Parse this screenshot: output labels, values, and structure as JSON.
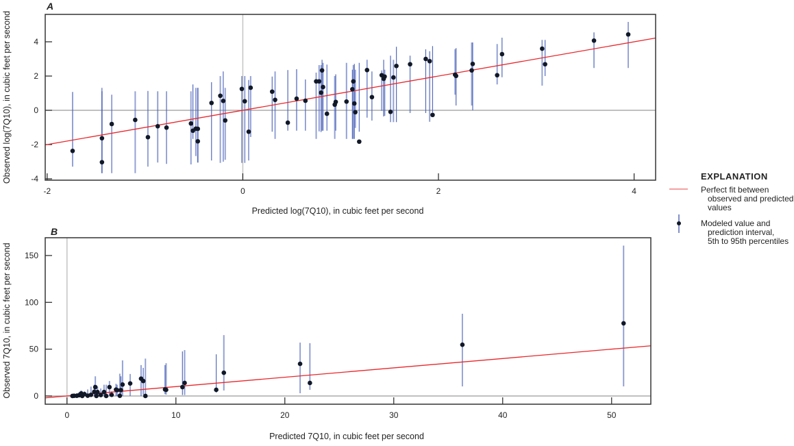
{
  "colors": {
    "fit_line": "#e8262a",
    "interval": "#4a62b8",
    "point": "#111827",
    "reference": "#9a9a9a",
    "frame": "#333333"
  },
  "legend": {
    "title": "EXPLANATION",
    "fit_line": [
      "Perfect fit between",
      "observed and predicted",
      "values"
    ],
    "points": [
      "Modeled value and",
      "prediction interval,",
      "5th to 95th percentiles"
    ]
  },
  "chart_data": [
    {
      "panel": "A",
      "type": "scatter",
      "xlabel": "Predicted log(7Q10), in cubic feet per second",
      "ylabel": "Observed log(7Q10), in cubic feet per second",
      "xlim": [
        -2.02,
        4.22
      ],
      "ylim": [
        -4.08,
        5.6
      ],
      "xticks": [
        -2,
        0,
        2,
        4
      ],
      "yticks": [
        -4,
        -2,
        0,
        2,
        4
      ],
      "grid": false,
      "reference_lines": {
        "x": 0,
        "y": 0
      },
      "fit_line": "y = x",
      "point_fields": [
        "predicted",
        "observed",
        "p5",
        "p95"
      ],
      "points": [
        [
          -1.74,
          -2.37,
          -3.29,
          1.07
        ],
        [
          -1.44,
          -1.63,
          -3.67,
          1.31
        ],
        [
          -1.44,
          -3.03,
          -3.67,
          1.11
        ],
        [
          -1.34,
          -0.8,
          -3.67,
          0.91
        ],
        [
          -1.1,
          -0.56,
          -3.67,
          1.11
        ],
        [
          -0.97,
          -1.57,
          -3.29,
          1.13
        ],
        [
          -0.87,
          -0.93,
          -3.05,
          1.11
        ],
        [
          -0.78,
          -1.01,
          -3.13,
          1.11
        ],
        [
          -0.53,
          -0.77,
          -3.16,
          1.11
        ],
        [
          -0.51,
          -1.19,
          -1.67,
          1.51
        ],
        [
          -0.48,
          -1.07,
          -2.67,
          1.31
        ],
        [
          -0.46,
          -1.08,
          -3.05,
          1.31
        ],
        [
          -0.46,
          -1.81,
          -3.05,
          1.31
        ],
        [
          -0.32,
          0.43,
          -2.93,
          1.64
        ],
        [
          -0.23,
          0.85,
          -3.07,
          2.0
        ],
        [
          -0.2,
          0.55,
          -3.0,
          2.27
        ],
        [
          -0.18,
          -0.59,
          -2.89,
          1.31
        ],
        [
          -0.01,
          1.25,
          -3.07,
          2.0
        ],
        [
          0.02,
          0.53,
          -3.07,
          2.0
        ],
        [
          0.06,
          -1.25,
          -2.93,
          1.77
        ],
        [
          0.08,
          1.32,
          -1.56,
          2.0
        ],
        [
          0.3,
          1.09,
          -1.25,
          1.97
        ],
        [
          0.33,
          0.61,
          -1.67,
          2.27
        ],
        [
          0.46,
          -0.72,
          -1.19,
          2.35
        ],
        [
          0.55,
          0.68,
          -1.19,
          2.4
        ],
        [
          0.64,
          0.56,
          -1.19,
          1.8
        ],
        [
          0.75,
          1.69,
          -1.67,
          2.2
        ],
        [
          0.78,
          1.69,
          -1.23,
          2.64
        ],
        [
          0.8,
          1.03,
          -1.27,
          2.64
        ],
        [
          0.81,
          2.33,
          -1.19,
          2.95
        ],
        [
          0.82,
          1.36,
          -1.19,
          2.77
        ],
        [
          0.86,
          -0.2,
          -1.19,
          2.67
        ],
        [
          0.94,
          0.33,
          -1.67,
          2.0
        ],
        [
          0.95,
          0.49,
          -1.19,
          2.1
        ],
        [
          1.06,
          0.51,
          -1.67,
          2.77
        ],
        [
          1.12,
          1.23,
          -1.67,
          2.37
        ],
        [
          1.13,
          1.69,
          -1.67,
          2.64
        ],
        [
          1.14,
          0.4,
          -1.67,
          2.71
        ],
        [
          1.15,
          -0.11,
          -1.03,
          2.37
        ],
        [
          1.19,
          -1.83,
          -1.25,
          2.77
        ],
        [
          1.27,
          2.35,
          -0.43,
          2.95
        ],
        [
          1.32,
          0.77,
          -0.6,
          2.27
        ],
        [
          1.42,
          2.05,
          -0.03,
          2.33
        ],
        [
          1.44,
          1.84,
          -0.36,
          2.95
        ],
        [
          1.45,
          1.97,
          -0.32,
          2.37
        ],
        [
          1.51,
          -0.09,
          -0.69,
          3.19
        ],
        [
          1.54,
          1.92,
          -0.69,
          2.95
        ],
        [
          1.57,
          2.59,
          -0.69,
          3.71
        ],
        [
          1.71,
          2.69,
          -0.16,
          3.19
        ],
        [
          1.87,
          3.0,
          -0.16,
          3.56
        ],
        [
          1.91,
          2.87,
          -0.67,
          3.45
        ],
        [
          1.94,
          -0.27,
          -0.13,
          3.75
        ],
        [
          2.17,
          2.08,
          0.91,
          3.57
        ],
        [
          2.18,
          2.01,
          0.28,
          3.63
        ],
        [
          2.34,
          2.33,
          0.28,
          3.96
        ],
        [
          2.35,
          2.71,
          0,
          3.96
        ],
        [
          2.6,
          2.05,
          1.51,
          3.87
        ],
        [
          2.65,
          3.28,
          1.93,
          4.24
        ],
        [
          3.06,
          3.6,
          1.44,
          4.11
        ],
        [
          3.09,
          2.69,
          2.0,
          4.11
        ],
        [
          3.59,
          4.07,
          2.47,
          4.55
        ],
        [
          3.94,
          4.43,
          2.47,
          5.16
        ]
      ]
    },
    {
      "panel": "B",
      "type": "scatter",
      "xlabel": "Predicted 7Q10, in cubic feet per second",
      "ylabel": "Observed 7Q10, in cubic feet per second",
      "xlim": [
        -2.0,
        53.6
      ],
      "ylim": [
        -8.8,
        169
      ],
      "xticks": [
        0,
        10,
        20,
        30,
        40,
        50
      ],
      "yticks": [
        0,
        50,
        100,
        150
      ],
      "grid": false,
      "reference_lines": {
        "x": 0,
        "y": 0
      },
      "fit_line": "y = x",
      "point_fields": [
        "predicted",
        "observed",
        "p5",
        "p95"
      ],
      "points": [
        [
          0.5,
          0,
          0,
          1
        ],
        [
          0.65,
          0.2,
          0,
          2
        ],
        [
          0.9,
          0.2,
          0,
          3
        ],
        [
          1.1,
          0.8,
          0,
          4
        ],
        [
          1.3,
          2.7,
          0,
          6
        ],
        [
          1.4,
          0,
          0,
          5
        ],
        [
          1.6,
          2,
          0,
          5
        ],
        [
          1.9,
          0.3,
          0,
          7
        ],
        [
          2.2,
          1.2,
          0,
          10
        ],
        [
          2.5,
          4.4,
          0,
          12
        ],
        [
          2.6,
          9.5,
          0,
          21
        ],
        [
          2.7,
          0,
          0,
          6
        ],
        [
          2.8,
          4.2,
          0,
          10
        ],
        [
          3.1,
          1,
          0,
          8
        ],
        [
          3.4,
          4.2,
          0,
          12
        ],
        [
          3.6,
          0,
          0,
          12
        ],
        [
          3.9,
          9.5,
          0,
          16
        ],
        [
          4.1,
          1.2,
          0,
          5
        ],
        [
          4.5,
          6.8,
          0,
          13
        ],
        [
          4.6,
          6.3,
          0,
          12
        ],
        [
          4.85,
          0.2,
          0,
          23.8
        ],
        [
          4.95,
          6.3,
          0,
          21
        ],
        [
          5.1,
          12.2,
          0,
          38
        ],
        [
          5.8,
          13.4,
          0,
          23.5
        ],
        [
          6.8,
          18.5,
          0,
          33
        ],
        [
          7.0,
          16,
          1.4,
          30
        ],
        [
          7.2,
          0,
          1.4,
          39.9
        ],
        [
          9.0,
          7.0,
          2,
          33
        ],
        [
          9.1,
          6.6,
          1.4,
          35
        ],
        [
          10.6,
          9.5,
          1.0,
          47.6
        ],
        [
          10.8,
          13.9,
          1.0,
          49
        ],
        [
          13.7,
          6.6,
          3.6,
          44.5
        ],
        [
          14.4,
          24.8,
          5.8,
          65
        ],
        [
          21.4,
          34.3,
          2.9,
          57
        ],
        [
          22.3,
          13.9,
          6.6,
          56.4
        ],
        [
          36.3,
          54.7,
          10.2,
          87.8
        ],
        [
          51.1,
          77.6,
          10.2,
          160.6
        ]
      ]
    }
  ]
}
